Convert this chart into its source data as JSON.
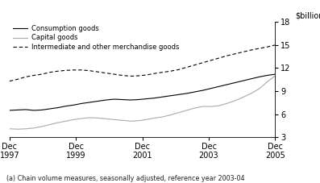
{
  "title": "",
  "ylabel": "$billion",
  "footnote": "(a) Chain volume measures, seasonally adjusted, reference year 2003-04",
  "ylim": [
    3,
    18
  ],
  "yticks": [
    3,
    6,
    9,
    12,
    15,
    18
  ],
  "xtick_labels": [
    "Dec\n1997",
    "Dec\n1999",
    "Dec\n2001",
    "Dec\n2003",
    "Dec\n2005"
  ],
  "legend": [
    {
      "label": "Consumption goods",
      "color": "#000000",
      "ls": "-"
    },
    {
      "label": "Capital goods",
      "color": "#aaaaaa",
      "ls": "-"
    },
    {
      "label": "Intermediate and other merchandise goods",
      "color": "#000000",
      "ls": "--"
    }
  ],
  "consumption": [
    6.5,
    6.55,
    6.6,
    6.5,
    6.55,
    6.7,
    6.85,
    7.05,
    7.2,
    7.4,
    7.55,
    7.7,
    7.85,
    7.95,
    7.9,
    7.85,
    7.9,
    8.0,
    8.1,
    8.25,
    8.4,
    8.55,
    8.7,
    8.9,
    9.1,
    9.35,
    9.6,
    9.85,
    10.1,
    10.35,
    10.6,
    10.85,
    11.05,
    11.2
  ],
  "capital": [
    4.1,
    4.05,
    4.1,
    4.2,
    4.4,
    4.65,
    4.9,
    5.1,
    5.3,
    5.45,
    5.55,
    5.5,
    5.4,
    5.3,
    5.2,
    5.1,
    5.15,
    5.3,
    5.5,
    5.65,
    5.9,
    6.2,
    6.5,
    6.8,
    7.0,
    7.0,
    7.1,
    7.4,
    7.75,
    8.2,
    8.7,
    9.3,
    10.2,
    11.0
  ],
  "intermediate": [
    10.3,
    10.55,
    10.85,
    11.05,
    11.2,
    11.45,
    11.6,
    11.7,
    11.75,
    11.75,
    11.65,
    11.5,
    11.35,
    11.2,
    11.05,
    10.95,
    11.0,
    11.1,
    11.3,
    11.45,
    11.6,
    11.8,
    12.1,
    12.4,
    12.7,
    13.0,
    13.3,
    13.6,
    13.85,
    14.1,
    14.35,
    14.55,
    14.75,
    15.0
  ]
}
